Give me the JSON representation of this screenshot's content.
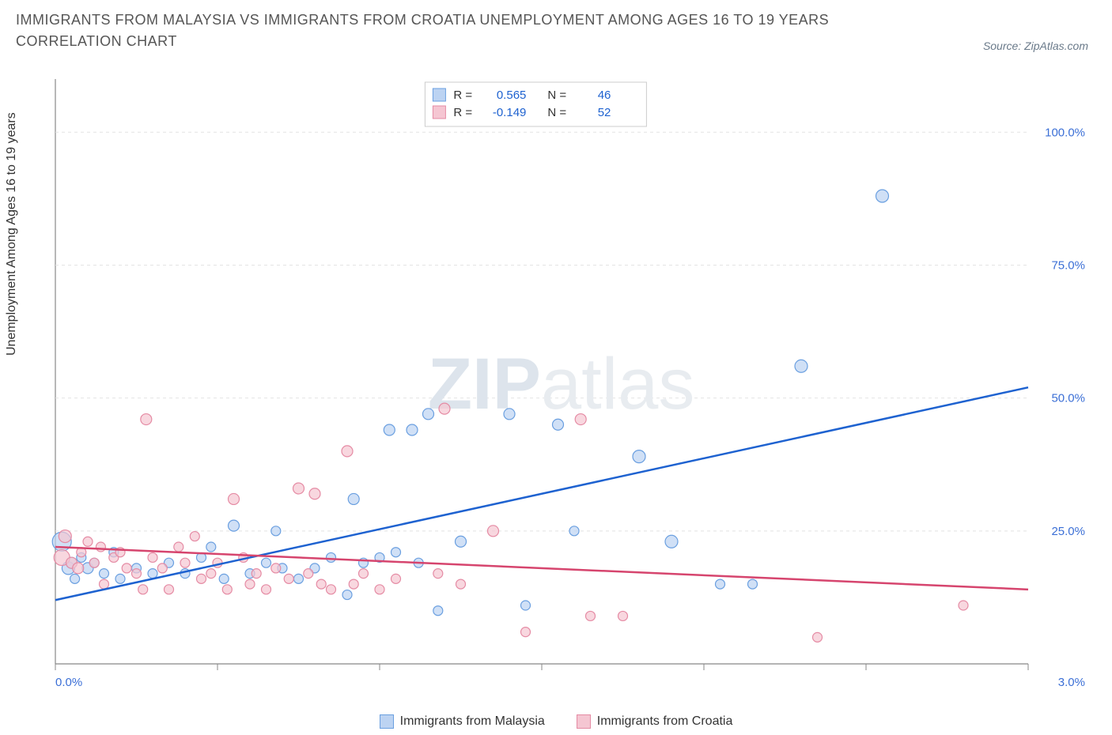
{
  "title": "IMMIGRANTS FROM MALAYSIA VS IMMIGRANTS FROM CROATIA UNEMPLOYMENT AMONG AGES 16 TO 19 YEARS CORRELATION CHART",
  "source": "Source: ZipAtlas.com",
  "watermark_bold": "ZIP",
  "watermark_light": "atlas",
  "y_axis_label": "Unemployment Among Ages 16 to 19 years",
  "chart": {
    "type": "scatter",
    "plot_bg": "#ffffff",
    "border_color": "#888888",
    "grid_color": "#e4e4e4",
    "xlim": [
      0,
      3
    ],
    "ylim": [
      0,
      110
    ],
    "x_ticks": [
      0,
      0.5,
      1,
      1.5,
      2,
      2.5,
      3
    ],
    "x_labels": {
      "0": "0.0%",
      "3": "3.0%"
    },
    "x_label_color": "#3b6fd6",
    "y_ticks": [
      25,
      50,
      75,
      100
    ],
    "y_labels": {
      "25": "25.0%",
      "50": "50.0%",
      "75": "75.0%",
      "100": "100.0%"
    },
    "y_label_color": "#3b6fd6",
    "inner_legend": {
      "bg": "#ffffff",
      "border": "#cccccc",
      "items": [
        {
          "swatch_fill": "#bcd3f2",
          "swatch_stroke": "#6a9fe0",
          "r_text": "R =",
          "r_val": "0.565",
          "n_text": "N =",
          "n_val": "46",
          "val_color": "#1e62d0"
        },
        {
          "swatch_fill": "#f5c6d2",
          "swatch_stroke": "#e58ba4",
          "r_text": "R =",
          "r_val": "-0.149",
          "n_text": "N =",
          "n_val": "52",
          "val_color": "#1e62d0"
        }
      ]
    },
    "series": [
      {
        "name": "Immigrants from Malaysia",
        "fill": "#bcd3f2",
        "stroke": "#6a9fe0",
        "fill_opacity": 0.7,
        "trend": {
          "x1": 0,
          "y1": 12,
          "x2": 3,
          "y2": 52,
          "color": "#1e62d0",
          "width": 2.5
        },
        "points": [
          {
            "x": 0.02,
            "y": 23,
            "r": 12
          },
          {
            "x": 0.04,
            "y": 18,
            "r": 8
          },
          {
            "x": 0.05,
            "y": 19,
            "r": 7
          },
          {
            "x": 0.06,
            "y": 16,
            "r": 6
          },
          {
            "x": 0.08,
            "y": 20,
            "r": 6
          },
          {
            "x": 0.1,
            "y": 18,
            "r": 7
          },
          {
            "x": 0.12,
            "y": 19,
            "r": 6
          },
          {
            "x": 0.15,
            "y": 17,
            "r": 6
          },
          {
            "x": 0.18,
            "y": 21,
            "r": 6
          },
          {
            "x": 0.2,
            "y": 16,
            "r": 6
          },
          {
            "x": 0.25,
            "y": 18,
            "r": 6
          },
          {
            "x": 0.3,
            "y": 17,
            "r": 6
          },
          {
            "x": 0.35,
            "y": 19,
            "r": 6
          },
          {
            "x": 0.4,
            "y": 17,
            "r": 6
          },
          {
            "x": 0.45,
            "y": 20,
            "r": 6
          },
          {
            "x": 0.48,
            "y": 22,
            "r": 6
          },
          {
            "x": 0.52,
            "y": 16,
            "r": 6
          },
          {
            "x": 0.55,
            "y": 26,
            "r": 7
          },
          {
            "x": 0.6,
            "y": 17,
            "r": 6
          },
          {
            "x": 0.65,
            "y": 19,
            "r": 6
          },
          {
            "x": 0.68,
            "y": 25,
            "r": 6
          },
          {
            "x": 0.7,
            "y": 18,
            "r": 6
          },
          {
            "x": 0.75,
            "y": 16,
            "r": 6
          },
          {
            "x": 0.8,
            "y": 18,
            "r": 6
          },
          {
            "x": 0.85,
            "y": 20,
            "r": 6
          },
          {
            "x": 0.9,
            "y": 13,
            "r": 6
          },
          {
            "x": 0.92,
            "y": 31,
            "r": 7
          },
          {
            "x": 0.95,
            "y": 19,
            "r": 6
          },
          {
            "x": 1.0,
            "y": 20,
            "r": 6
          },
          {
            "x": 1.03,
            "y": 44,
            "r": 7
          },
          {
            "x": 1.05,
            "y": 21,
            "r": 6
          },
          {
            "x": 1.1,
            "y": 44,
            "r": 7
          },
          {
            "x": 1.12,
            "y": 19,
            "r": 6
          },
          {
            "x": 1.15,
            "y": 47,
            "r": 7
          },
          {
            "x": 1.18,
            "y": 10,
            "r": 6
          },
          {
            "x": 1.25,
            "y": 23,
            "r": 7
          },
          {
            "x": 1.4,
            "y": 47,
            "r": 7
          },
          {
            "x": 1.45,
            "y": 11,
            "r": 6
          },
          {
            "x": 1.55,
            "y": 45,
            "r": 7
          },
          {
            "x": 1.6,
            "y": 25,
            "r": 6
          },
          {
            "x": 1.8,
            "y": 39,
            "r": 8
          },
          {
            "x": 1.9,
            "y": 23,
            "r": 8
          },
          {
            "x": 2.05,
            "y": 15,
            "r": 6
          },
          {
            "x": 2.15,
            "y": 15,
            "r": 6
          },
          {
            "x": 2.3,
            "y": 56,
            "r": 8
          },
          {
            "x": 2.55,
            "y": 88,
            "r": 8
          }
        ]
      },
      {
        "name": "Immigrants from Croatia",
        "fill": "#f5c6d2",
        "stroke": "#e58ba4",
        "fill_opacity": 0.7,
        "trend": {
          "x1": 0,
          "y1": 22,
          "x2": 3,
          "y2": 14,
          "color": "#d6456e",
          "width": 2.5
        },
        "points": [
          {
            "x": 0.02,
            "y": 20,
            "r": 10
          },
          {
            "x": 0.03,
            "y": 24,
            "r": 8
          },
          {
            "x": 0.05,
            "y": 19,
            "r": 7
          },
          {
            "x": 0.07,
            "y": 18,
            "r": 7
          },
          {
            "x": 0.08,
            "y": 21,
            "r": 6
          },
          {
            "x": 0.1,
            "y": 23,
            "r": 6
          },
          {
            "x": 0.12,
            "y": 19,
            "r": 6
          },
          {
            "x": 0.14,
            "y": 22,
            "r": 6
          },
          {
            "x": 0.15,
            "y": 15,
            "r": 6
          },
          {
            "x": 0.18,
            "y": 20,
            "r": 6
          },
          {
            "x": 0.2,
            "y": 21,
            "r": 6
          },
          {
            "x": 0.22,
            "y": 18,
            "r": 6
          },
          {
            "x": 0.25,
            "y": 17,
            "r": 6
          },
          {
            "x": 0.27,
            "y": 14,
            "r": 6
          },
          {
            "x": 0.28,
            "y": 46,
            "r": 7
          },
          {
            "x": 0.3,
            "y": 20,
            "r": 6
          },
          {
            "x": 0.33,
            "y": 18,
            "r": 6
          },
          {
            "x": 0.35,
            "y": 14,
            "r": 6
          },
          {
            "x": 0.38,
            "y": 22,
            "r": 6
          },
          {
            "x": 0.4,
            "y": 19,
            "r": 6
          },
          {
            "x": 0.43,
            "y": 24,
            "r": 6
          },
          {
            "x": 0.45,
            "y": 16,
            "r": 6
          },
          {
            "x": 0.48,
            "y": 17,
            "r": 6
          },
          {
            "x": 0.5,
            "y": 19,
            "r": 6
          },
          {
            "x": 0.53,
            "y": 14,
            "r": 6
          },
          {
            "x": 0.55,
            "y": 31,
            "r": 7
          },
          {
            "x": 0.58,
            "y": 20,
            "r": 6
          },
          {
            "x": 0.6,
            "y": 15,
            "r": 6
          },
          {
            "x": 0.62,
            "y": 17,
            "r": 6
          },
          {
            "x": 0.65,
            "y": 14,
            "r": 6
          },
          {
            "x": 0.68,
            "y": 18,
            "r": 6
          },
          {
            "x": 0.72,
            "y": 16,
            "r": 6
          },
          {
            "x": 0.75,
            "y": 33,
            "r": 7
          },
          {
            "x": 0.78,
            "y": 17,
            "r": 6
          },
          {
            "x": 0.8,
            "y": 32,
            "r": 7
          },
          {
            "x": 0.82,
            "y": 15,
            "r": 6
          },
          {
            "x": 0.85,
            "y": 14,
            "r": 6
          },
          {
            "x": 0.9,
            "y": 40,
            "r": 7
          },
          {
            "x": 0.92,
            "y": 15,
            "r": 6
          },
          {
            "x": 0.95,
            "y": 17,
            "r": 6
          },
          {
            "x": 1.0,
            "y": 14,
            "r": 6
          },
          {
            "x": 1.05,
            "y": 16,
            "r": 6
          },
          {
            "x": 1.18,
            "y": 17,
            "r": 6
          },
          {
            "x": 1.2,
            "y": 48,
            "r": 7
          },
          {
            "x": 1.25,
            "y": 15,
            "r": 6
          },
          {
            "x": 1.35,
            "y": 25,
            "r": 7
          },
          {
            "x": 1.45,
            "y": 6,
            "r": 6
          },
          {
            "x": 1.62,
            "y": 46,
            "r": 7
          },
          {
            "x": 1.65,
            "y": 9,
            "r": 6
          },
          {
            "x": 1.75,
            "y": 9,
            "r": 6
          },
          {
            "x": 2.35,
            "y": 5,
            "r": 6
          },
          {
            "x": 2.8,
            "y": 11,
            "r": 6
          }
        ]
      }
    ]
  },
  "bottom_legend": [
    {
      "label": "Immigrants from Malaysia",
      "fill": "#bcd3f2",
      "stroke": "#6a9fe0"
    },
    {
      "label": "Immigrants from Croatia",
      "fill": "#f5c6d2",
      "stroke": "#e58ba4"
    }
  ]
}
